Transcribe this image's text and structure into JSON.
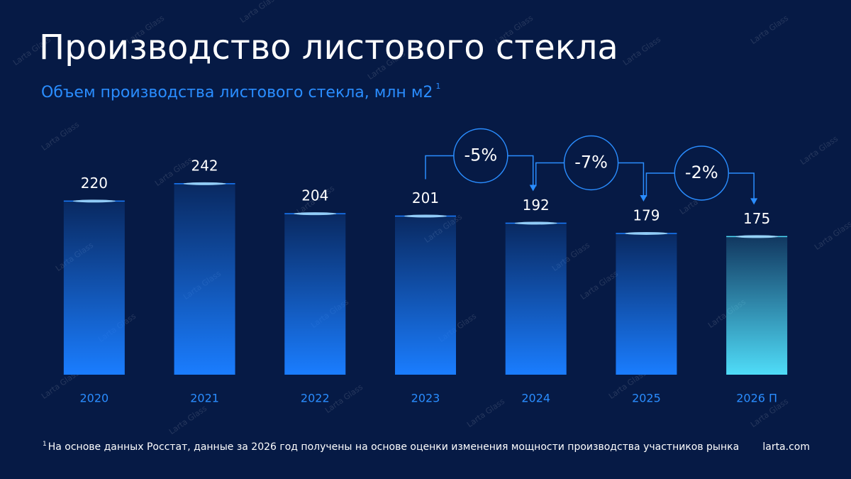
{
  "chart_data": {
    "type": "bar",
    "title": "Производство листового стекла",
    "subtitle": "Объем производства листового стекла, млн м2",
    "subtitle_note": "1",
    "categories": [
      "2020",
      "2021",
      "2022",
      "2023",
      "2024",
      "2025",
      "2026 П"
    ],
    "values": [
      220,
      242,
      204,
      201,
      192,
      179,
      175
    ],
    "colors": [
      "#1a7dff",
      "#1a7dff",
      "#1a7dff",
      "#1a7dff",
      "#1a7dff",
      "#1a7dff",
      "#4fdcf8"
    ],
    "ylim": [
      0,
      250
    ],
    "change_labels": [
      "-5%",
      "-7%",
      "-2%"
    ],
    "footnote_marker": "1",
    "footnote": "На основе данных Росстат, данные за 2026 год получены на основе оценки изменения мощности производства участников рынка",
    "source": "larta.com"
  },
  "watermark": "Larta Glass"
}
